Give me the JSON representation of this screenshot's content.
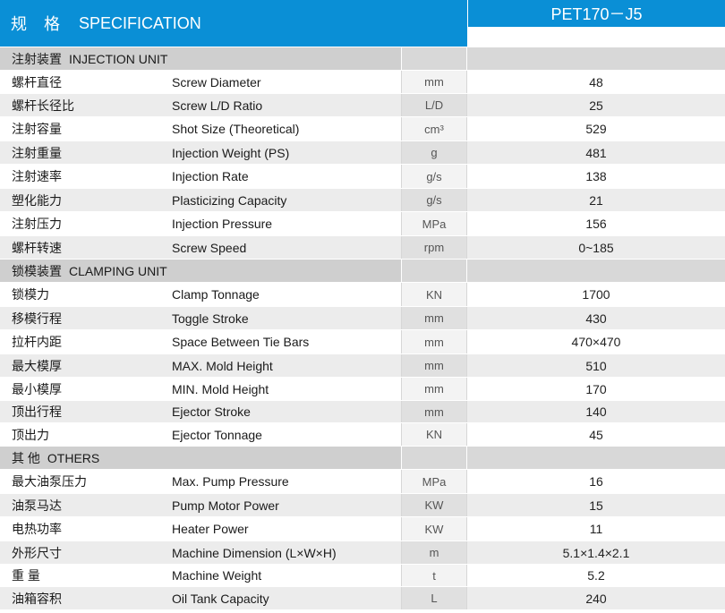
{
  "header": {
    "title_zh": "规 格",
    "title_en": "SPECIFICATION",
    "model": "PET170－J5"
  },
  "sections": [
    {
      "title_zh": "注射装置",
      "title_en": "INJECTION UNIT",
      "rows": [
        {
          "zh": "螺杆直径",
          "en": "Screw Diameter",
          "unit": "mm",
          "value": "48"
        },
        {
          "zh": "螺杆长径比",
          "en": "Screw L/D Ratio",
          "unit": "L/D",
          "value": "25"
        },
        {
          "zh": "注射容量",
          "en": "Shot Size (Theoretical)",
          "unit": "cm³",
          "value": "529"
        },
        {
          "zh": "注射重量",
          "en": "Injection Weight (PS)",
          "unit": "g",
          "value": "481"
        },
        {
          "zh": "注射速率",
          "en": "Injection Rate",
          "unit": "g/s",
          "value": "138"
        },
        {
          "zh": "塑化能力",
          "en": "Plasticizing Capacity",
          "unit": "g/s",
          "value": "21"
        },
        {
          "zh": "注射压力",
          "en": "Injection Pressure",
          "unit": "MPa",
          "value": "156"
        },
        {
          "zh": "螺杆转速",
          "en": "Screw Speed",
          "unit": "rpm",
          "value": "0~185"
        }
      ]
    },
    {
      "title_zh": "锁模装置",
      "title_en": "CLAMPING UNIT",
      "rows": [
        {
          "zh": "锁模力",
          "en": "Clamp Tonnage",
          "unit": "KN",
          "value": "1700"
        },
        {
          "zh": "移模行程",
          "en": "Toggle Stroke",
          "unit": "mm",
          "value": "430"
        },
        {
          "zh": "拉杆内距",
          "en": "Space Between Tie Bars",
          "unit": "mm",
          "value": "470×470"
        },
        {
          "zh": "最大模厚",
          "en": "MAX. Mold Height",
          "unit": "mm",
          "value": "510"
        },
        {
          "zh": "最小模厚",
          "en": "MIN. Mold Height",
          "unit": "mm",
          "value": "170"
        },
        {
          "zh": "顶出行程",
          "en": "Ejector Stroke",
          "unit": "mm",
          "value": "140"
        },
        {
          "zh": "顶出力",
          "en": "Ejector Tonnage",
          "unit": "KN",
          "value": "45"
        }
      ]
    },
    {
      "title_zh": "其 他",
      "title_en": "OTHERS",
      "rows": [
        {
          "zh": "最大油泵压力",
          "en": "Max. Pump Pressure",
          "unit": "MPa",
          "value": "16"
        },
        {
          "zh": "油泵马达",
          "en": "Pump Motor Power",
          "unit": "KW",
          "value": "15"
        },
        {
          "zh": "电热功率",
          "en": "Heater Power",
          "unit": "KW",
          "value": "11"
        },
        {
          "zh": "外形尺寸",
          "en": "Machine Dimension (L×W×H)",
          "unit": "m",
          "value": "5.1×1.4×2.1"
        },
        {
          "zh": "重 量",
          "en": "Machine Weight",
          "unit": "t",
          "value": "5.2"
        },
        {
          "zh": "油箱容积",
          "en": "Oil Tank Capacity",
          "unit": "L",
          "value": "240"
        }
      ]
    }
  ]
}
